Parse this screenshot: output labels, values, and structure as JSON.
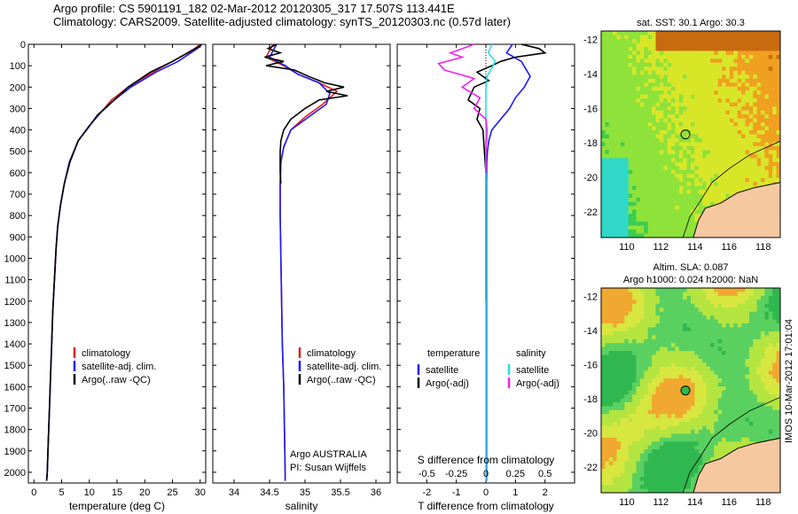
{
  "header": {
    "line1": "Argo profile: CS 5901191_182 02-Mar-2012 20120305_317 17.507S 113.441E",
    "line2": "Climatology: CARS2009. Satellite-adjusted climatology: synTS_20120303.nc (0.57d later)"
  },
  "stamp": "IMOS 10-Mar-2012 17:01:04",
  "colors": {
    "climatology": "#e02020",
    "satellite": "#1a1aff",
    "argo": "#000000",
    "sal_sat": "#22e0e0",
    "sal_argo": "#ee22ee",
    "land": "#f6c8a0"
  },
  "chart_data": [
    {
      "type": "line",
      "id": "temperature",
      "xlabel": "temperature (deg C)",
      "xlim": [
        -1,
        31
      ],
      "xticks": [
        0,
        5,
        10,
        15,
        20,
        25,
        30
      ],
      "ylim": [
        0,
        2050
      ],
      "yticks": [
        0,
        100,
        200,
        300,
        400,
        500,
        600,
        700,
        800,
        900,
        1000,
        1100,
        1200,
        1300,
        1400,
        1500,
        1600,
        1700,
        1800,
        1900,
        2000
      ],
      "legend": [
        "climatology",
        "satellite-adj. clim.",
        "Argo(..raw -QC)"
      ],
      "series": [
        {
          "name": "climatology",
          "x": [
            30.0,
            29.0,
            25.0,
            21.5,
            17.0,
            14.0,
            12.0,
            10.0,
            8.0,
            6.4,
            5.5,
            4.8,
            4.3,
            4.0,
            3.7,
            3.4,
            3.2,
            3.0,
            2.8,
            2.6,
            2.4,
            2.3
          ],
          "y": [
            0,
            20,
            80,
            130,
            200,
            260,
            320,
            380,
            450,
            550,
            650,
            750,
            850,
            950,
            1100,
            1250,
            1400,
            1550,
            1700,
            1850,
            2000,
            2040
          ]
        },
        {
          "name": "satellite-adj. clim.",
          "x": [
            30.3,
            29.5,
            26.0,
            22.0,
            17.5,
            14.5,
            12.0,
            10.0,
            8.0,
            6.4,
            5.5,
            4.8,
            4.3,
            4.0,
            3.7,
            3.4,
            3.2,
            3.0,
            2.8,
            2.6,
            2.4,
            2.3
          ],
          "y": [
            0,
            20,
            80,
            130,
            200,
            260,
            320,
            380,
            450,
            550,
            650,
            750,
            850,
            950,
            1100,
            1250,
            1400,
            1550,
            1700,
            1850,
            2000,
            2040
          ]
        },
        {
          "name": "Argo(..raw -QC)",
          "x": [
            30.2,
            29.8,
            28.5,
            25.0,
            21.0,
            17.0,
            14.5,
            11.5,
            9.8,
            8.0,
            6.5,
            5.5,
            4.8,
            4.3,
            4.0,
            3.7,
            3.4,
            3.2,
            3.0,
            2.8,
            2.6,
            2.4,
            2.3
          ],
          "y": [
            0,
            10,
            30,
            80,
            130,
            200,
            260,
            330,
            390,
            450,
            550,
            650,
            750,
            850,
            950,
            1100,
            1250,
            1400,
            1550,
            1700,
            1850,
            2000,
            2040
          ]
        }
      ]
    },
    {
      "type": "line",
      "id": "salinity",
      "xlabel": "salinity",
      "xlim": [
        33.7,
        36.2
      ],
      "xticks": [
        34,
        34.5,
        35,
        35.5,
        36
      ],
      "ylim": [
        0,
        2050
      ],
      "legend": [
        "climatology",
        "satellite-adj. clim.",
        "Argo(..raw -QC)"
      ],
      "annotation": [
        "Argo AUSTRALIA",
        "PI: Susan Wijffels"
      ],
      "series": [
        {
          "name": "climatology",
          "x": [
            34.55,
            34.45,
            34.7,
            34.9,
            35.2,
            35.45,
            35.25,
            35.0,
            34.8,
            34.7,
            34.66,
            34.65,
            34.65,
            34.66,
            34.67,
            34.68,
            34.7,
            34.71,
            34.72,
            34.72
          ],
          "y": [
            0,
            60,
            100,
            140,
            180,
            220,
            280,
            340,
            400,
            480,
            550,
            650,
            800,
            1000,
            1200,
            1400,
            1600,
            1800,
            2000,
            2040
          ]
        },
        {
          "name": "satellite-adj. clim.",
          "x": [
            34.6,
            34.5,
            34.72,
            34.9,
            35.2,
            35.35,
            35.3,
            35.05,
            34.8,
            34.7,
            34.66,
            34.65,
            34.65,
            34.66,
            34.67,
            34.68,
            34.7,
            34.71,
            34.72,
            34.72
          ],
          "y": [
            0,
            60,
            100,
            140,
            180,
            230,
            280,
            340,
            400,
            480,
            550,
            650,
            800,
            1000,
            1200,
            1400,
            1600,
            1800,
            2000,
            2040
          ]
        },
        {
          "name": "Argo(..raw -QC)",
          "x": [
            34.6,
            34.48,
            34.65,
            34.43,
            34.7,
            34.45,
            34.85,
            35.05,
            35.28,
            35.55,
            35.3,
            35.6,
            35.2,
            35.0,
            34.8,
            34.7,
            34.66,
            34.65,
            34.65,
            34.66
          ],
          "y": [
            0,
            20,
            40,
            60,
            80,
            100,
            120,
            150,
            180,
            200,
            220,
            240,
            260,
            300,
            350,
            400,
            450,
            500,
            600,
            650
          ]
        }
      ]
    },
    {
      "type": "line",
      "id": "difference",
      "xlabel": "T difference from climatology",
      "x2label": "S difference from climatology",
      "xlim": [
        -3,
        3
      ],
      "xticks": [
        -2,
        -1,
        0,
        1,
        2
      ],
      "x2ticks": [
        -0.5,
        -0.25,
        0,
        0.25,
        0.5
      ],
      "ylim": [
        0,
        2050
      ],
      "legend": {
        "temperature_title": "temperature",
        "salinity_title": "salinity",
        "satellite": "satellite",
        "argo": "Argo(-adj)"
      },
      "series": [
        {
          "name": "temperature satellite",
          "x": [
            0.9,
            0.7,
            1.2,
            1.5,
            1.3,
            1.0,
            0.8,
            0.5,
            0.2,
            0.1,
            0.05,
            0.03,
            0.02,
            0.02,
            0.02,
            0.02,
            0.02,
            0.02
          ],
          "y": [
            0,
            40,
            80,
            150,
            200,
            250,
            300,
            350,
            400,
            450,
            500,
            550,
            650,
            800,
            1000,
            1400,
            1800,
            2040
          ]
        },
        {
          "name": "temperature Argo(-adj)",
          "x": [
            1.2,
            1.8,
            2.0,
            1.0,
            0.5,
            0.2,
            -0.3,
            0.1,
            -0.4,
            -0.6,
            -0.2,
            -0.3,
            -0.1,
            -0.05,
            0,
            0,
            0,
            0
          ],
          "y": [
            0,
            20,
            40,
            60,
            80,
            100,
            130,
            170,
            200,
            260,
            300,
            350,
            400,
            500,
            600,
            800,
            1000,
            1200
          ]
        },
        {
          "name": "salinity satellite",
          "x": [
            0.05,
            0.02,
            0.08,
            0.01,
            0.0,
            0.0,
            0.0,
            0.0,
            0.0,
            0.0,
            0.0
          ],
          "y": [
            0,
            40,
            80,
            150,
            200,
            300,
            400,
            600,
            1000,
            1500,
            2040
          ]
        },
        {
          "name": "salinity Argo(-adj)",
          "x": [
            -0.1,
            -0.3,
            -0.2,
            -0.4,
            -0.35,
            -0.1,
            -0.2,
            -0.05,
            -0.1,
            0,
            0.01,
            0,
            0
          ],
          "y": [
            0,
            40,
            60,
            90,
            120,
            160,
            200,
            250,
            300,
            350,
            400,
            500,
            600
          ]
        }
      ]
    },
    {
      "type": "heatmap",
      "id": "sst-map",
      "title": "sat. SST: 30.1  Argo: 30.3",
      "xticks": [
        110,
        112,
        114,
        116,
        118
      ],
      "yticks": [
        -12,
        -14,
        -16,
        -18,
        -20,
        -22
      ],
      "xlim": [
        108.5,
        119
      ],
      "ylim": [
        -23.5,
        -11.5
      ],
      "marker": {
        "lon": 113.441,
        "lat": -17.507
      }
    },
    {
      "type": "heatmap",
      "id": "sla-map",
      "title": [
        "Altim. SLA: 0.087",
        "Argo h1000: 0.024 h2000: NaN"
      ],
      "xticks": [
        110,
        112,
        114,
        116,
        118
      ],
      "yticks": [
        -12,
        -14,
        -16,
        -18,
        -20,
        -22
      ],
      "xlim": [
        108.5,
        119
      ],
      "ylim": [
        -23.5,
        -11.5
      ],
      "marker": {
        "lon": 113.441,
        "lat": -17.507
      }
    }
  ]
}
